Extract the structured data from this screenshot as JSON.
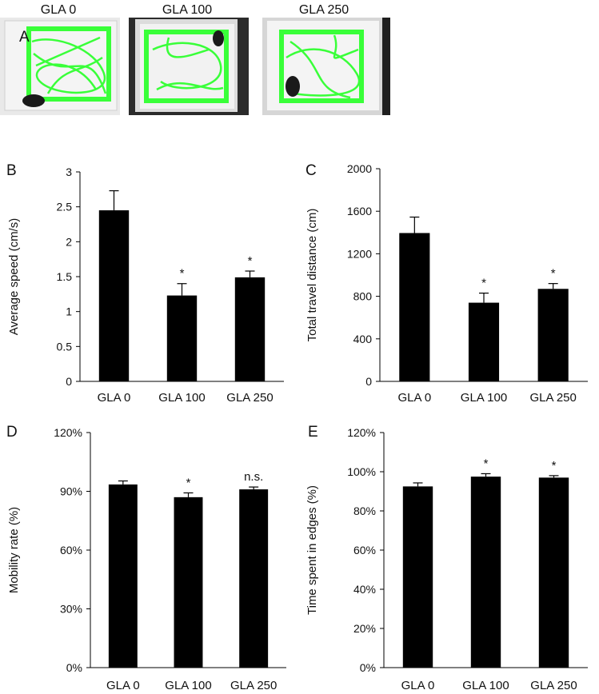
{
  "panel_a": {
    "letter": "A",
    "photos": [
      {
        "label": "GLA 0"
      },
      {
        "label": "GLA 100"
      },
      {
        "label": "GLA 250"
      }
    ],
    "track_color": "#39ff39"
  },
  "chart_data": [
    {
      "letter": "B",
      "type": "bar",
      "categories": [
        "GLA 0",
        "GLA 100",
        "GLA 250"
      ],
      "values": [
        2.45,
        1.23,
        1.49
      ],
      "errors": [
        0.28,
        0.17,
        0.09
      ],
      "annotations": [
        "",
        "*",
        "*"
      ],
      "ylabel": "Average  speed (cm/s)",
      "ylim": [
        0,
        3
      ],
      "yticks": [
        "0",
        "0.5",
        "1",
        "1.5",
        "2",
        "2.5",
        "3"
      ],
      "bar_color": "#000000"
    },
    {
      "letter": "C",
      "type": "bar",
      "categories": [
        "GLA 0",
        "GLA 100",
        "GLA 250"
      ],
      "values": [
        1395,
        740,
        870
      ],
      "errors": [
        150,
        90,
        50
      ],
      "annotations": [
        "",
        "*",
        "*"
      ],
      "ylabel": "Total travel distance (cm)",
      "ylim": [
        0,
        2000
      ],
      "yticks": [
        "0",
        "400",
        "800",
        "1200",
        "1600",
        "2000"
      ],
      "bar_color": "#000000"
    },
    {
      "letter": "D",
      "type": "bar",
      "categories": [
        "GLA 0",
        "GLA 100",
        "GLA 250"
      ],
      "values": [
        93.5,
        87,
        91
      ],
      "errors": [
        1.8,
        2.2,
        1.2
      ],
      "annotations": [
        "",
        "*",
        "n.s."
      ],
      "ylabel": "Mobility rate (%)",
      "ylim": [
        0,
        120
      ],
      "yticks": [
        "0%",
        "30%",
        "60%",
        "90%",
        "120%"
      ],
      "bar_color": "#000000"
    },
    {
      "letter": "E",
      "type": "bar",
      "categories": [
        "GLA 0",
        "GLA 100",
        "GLA 250"
      ],
      "values": [
        92.5,
        97.5,
        97
      ],
      "errors": [
        1.8,
        1.5,
        1.0
      ],
      "annotations": [
        "",
        "*",
        "*"
      ],
      "ylabel": "Time spent in edges (%)",
      "ylim": [
        0,
        120
      ],
      "yticks": [
        "0%",
        "20%",
        "40%",
        "60%",
        "80%",
        "100%",
        "120%"
      ],
      "bar_color": "#000000"
    }
  ]
}
